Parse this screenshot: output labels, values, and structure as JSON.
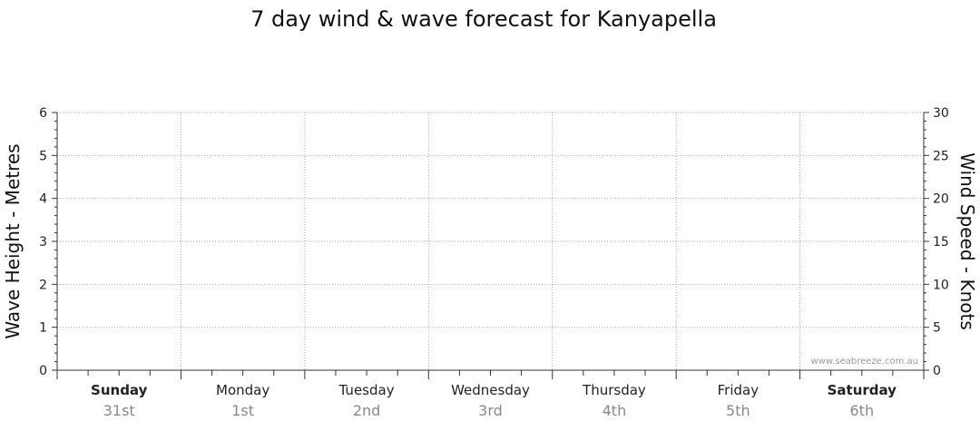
{
  "chart_data": {
    "type": "line",
    "title": "7 day wind & wave forecast for Kanyapella",
    "ylabel_left": "Wave Height - Metres",
    "ylabel_right": "Wind Speed - Knots",
    "y_left_range": [
      0,
      6
    ],
    "y_left_ticks": [
      "0",
      "1",
      "2",
      "3",
      "4",
      "5",
      "6"
    ],
    "y_right_range": [
      0,
      30
    ],
    "y_right_ticks": [
      "0",
      "5",
      "10",
      "15",
      "20",
      "25",
      "30"
    ],
    "days": [
      {
        "day": "Sunday",
        "date": "31st",
        "bold": true
      },
      {
        "day": "Monday",
        "date": "1st",
        "bold": false
      },
      {
        "day": "Tuesday",
        "date": "2nd",
        "bold": false
      },
      {
        "day": "Wednesday",
        "date": "3rd",
        "bold": false
      },
      {
        "day": "Thursday",
        "date": "4th",
        "bold": false
      },
      {
        "day": "Friday",
        "date": "5th",
        "bold": false
      },
      {
        "day": "Saturday",
        "date": "6th",
        "bold": true
      }
    ],
    "grid": true,
    "series": []
  },
  "watermark": "www.seabreeze.com.au"
}
